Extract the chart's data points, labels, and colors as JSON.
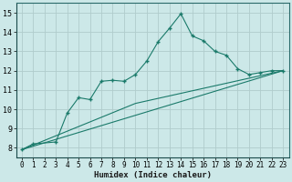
{
  "xlabel": "Humidex (Indice chaleur)",
  "background_color": "#cce8e8",
  "grid_color": "#b0cccc",
  "line_color": "#1a7a6a",
  "xlim": [
    -0.5,
    23.5
  ],
  "ylim": [
    7.5,
    15.5
  ],
  "yticks": [
    8,
    9,
    10,
    11,
    12,
    13,
    14,
    15
  ],
  "xticks": [
    0,
    1,
    2,
    3,
    4,
    5,
    6,
    7,
    8,
    9,
    10,
    11,
    12,
    13,
    14,
    15,
    16,
    17,
    18,
    19,
    20,
    21,
    22,
    23
  ],
  "xtick_labels": [
    "0",
    "1",
    "2",
    "3",
    "4",
    "5",
    "6",
    "7",
    "8",
    "9",
    "10",
    "11",
    "12",
    "13",
    "14",
    "15",
    "16",
    "17",
    "18",
    "19",
    "20",
    "21",
    "22",
    "23"
  ],
  "line1_x": [
    0,
    1,
    3,
    4,
    5,
    6,
    7,
    8,
    9,
    10,
    11,
    12,
    13,
    14,
    15,
    16,
    17,
    18,
    19,
    20,
    21,
    22,
    23
  ],
  "line1_y": [
    7.9,
    8.2,
    8.3,
    9.8,
    10.6,
    10.5,
    11.45,
    11.5,
    11.45,
    11.8,
    12.5,
    13.5,
    14.2,
    14.95,
    13.8,
    13.55,
    13.0,
    12.8,
    12.1,
    11.8,
    11.9,
    12.0,
    12.0
  ],
  "line2_x": [
    0,
    23
  ],
  "line2_y": [
    7.9,
    12.0
  ],
  "line3_x": [
    0,
    10,
    23
  ],
  "line3_y": [
    7.9,
    10.3,
    12.0
  ],
  "xlabel_fontsize": 6.5,
  "tick_fontsize": 5.5,
  "ytick_fontsize": 6.0
}
